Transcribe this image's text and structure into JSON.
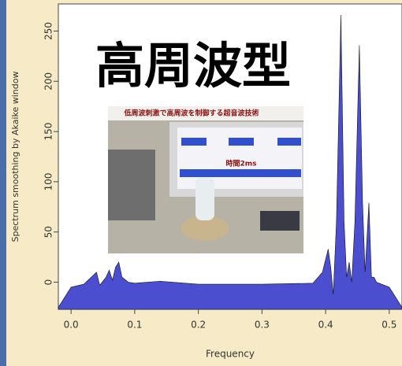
{
  "chart_data": {
    "type": "area",
    "title": "高周波型",
    "xlabel": "Frequency",
    "ylabel": "Spectrum smoothing by Akaike window",
    "image_caption": "低周波刺激で高周波を制御する超音波技術",
    "image_annotation": "時間2ms",
    "color": "#4b4fcf",
    "xlim": [
      -0.02,
      0.52
    ],
    "ylim": [
      -27,
      277
    ],
    "xticks": [
      {
        "value": 0,
        "label": "0.0"
      },
      0.1,
      0.2,
      0.3,
      0.4,
      0.5
    ],
    "yticks": [
      0,
      50,
      100,
      150,
      200,
      250
    ],
    "x": [
      -0.02,
      0.0,
      0.02,
      0.04,
      0.045,
      0.055,
      0.06,
      0.065,
      0.07,
      0.075,
      0.08,
      0.09,
      0.1,
      0.14,
      0.2,
      0.3,
      0.38,
      0.395,
      0.404,
      0.408,
      0.412,
      0.417,
      0.424,
      0.429,
      0.433,
      0.437,
      0.441,
      0.446,
      0.453,
      0.458,
      0.462,
      0.468,
      0.472,
      0.476,
      0.48,
      0.5,
      0.52
    ],
    "values": [
      -25,
      -5,
      -2,
      10,
      -3,
      5,
      12,
      2,
      15,
      20,
      5,
      0,
      -1,
      1,
      -2,
      -2,
      -1,
      10,
      33,
      15,
      -12,
      60,
      266,
      60,
      5,
      20,
      0,
      60,
      236,
      80,
      10,
      79,
      5,
      5,
      0,
      -5,
      -25
    ]
  }
}
